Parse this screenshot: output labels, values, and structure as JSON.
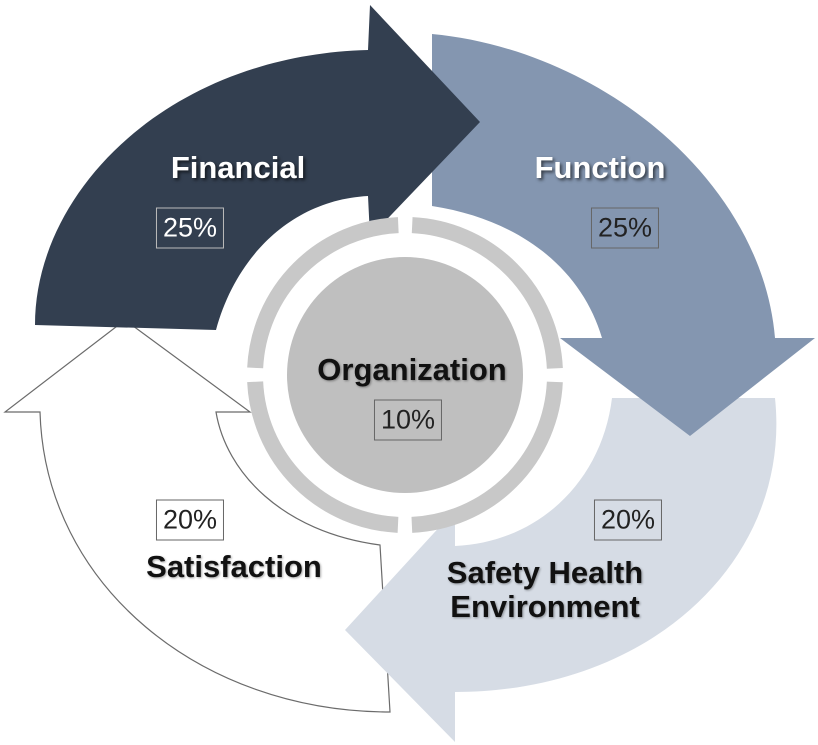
{
  "segments": [
    {
      "label": "Financial",
      "percent": "25%"
    },
    {
      "label": "Function",
      "percent": "25%"
    },
    {
      "label": "Safety Health Environment",
      "percent": "20%"
    },
    {
      "label": "Satisfaction",
      "percent": "20%"
    }
  ],
  "center": {
    "label": "Organization",
    "percent": "10%"
  }
}
